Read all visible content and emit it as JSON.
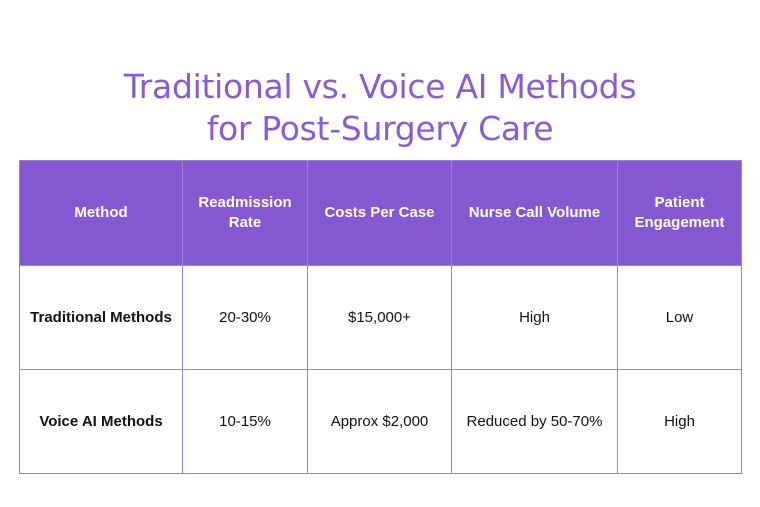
{
  "title": {
    "line1": "Traditional vs. Voice AI Methods",
    "line2": "for Post-Surgery Care"
  },
  "table": {
    "headers": [
      "Method",
      "Readmission Rate",
      "Costs Per Case",
      "Nurse Call Volume",
      "Patient Engagement"
    ],
    "rows": [
      [
        "Traditional Methods",
        "20-30%",
        "$15,000+",
        "High",
        "Low"
      ],
      [
        "Voice AI Methods",
        "10-15%",
        "Approx $2,000",
        "Reduced by 50-70%",
        "High"
      ]
    ]
  },
  "colors": {
    "accent": "#8458d1",
    "title": "#8a5bd6",
    "border": "#9d7fdc"
  }
}
